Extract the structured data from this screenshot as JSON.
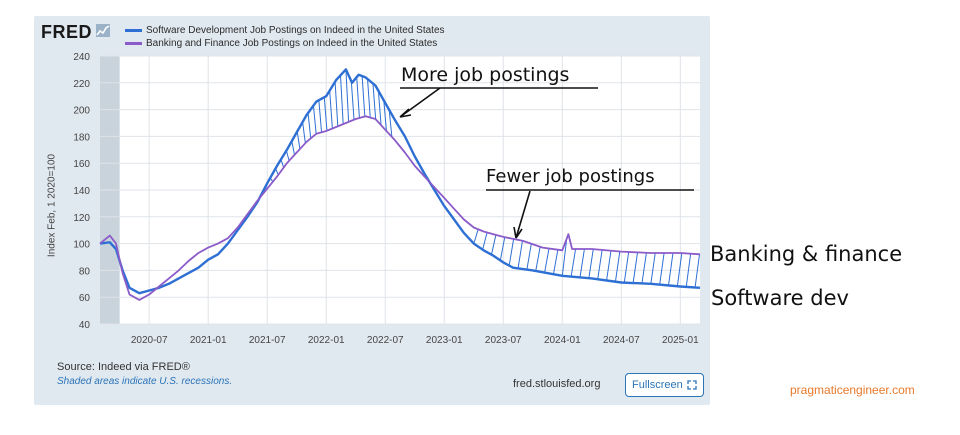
{
  "brand": "FRED",
  "legend": {
    "items": [
      {
        "label": "Software Development Job Postings on Indeed in the United States",
        "color": "#2e6fd4"
      },
      {
        "label": "Banking and Finance Job Postings on Indeed in the United States",
        "color": "#8a5bc9"
      }
    ]
  },
  "axis": {
    "ylabel": "Index Feb, 1 2020=100"
  },
  "footer": {
    "source": "Source: Indeed via FRED®",
    "recession_note": "Shaded areas indicate U.S. recessions.",
    "website": "fred.stlouisfed.org",
    "fullscreen_label": "Fullscreen"
  },
  "annotations": {
    "more": "More job postings",
    "fewer": "Fewer job postings",
    "banking": "Banking & finance",
    "software": "Software dev"
  },
  "credit": "pragmaticengineer.com",
  "colors": {
    "software": "#2e6fd4",
    "banking": "#8a5bc9",
    "panel": "#e1e9f0",
    "recession": "#c9d3dc",
    "credit": "#e8792a"
  },
  "chart_data": {
    "type": "line",
    "ylabel": "Index Feb, 1 2020=100",
    "ylim": [
      40,
      240
    ],
    "yticks": [
      40,
      60,
      80,
      100,
      120,
      140,
      160,
      180,
      200,
      220,
      240
    ],
    "xlim": [
      "2020-02",
      "2025-03"
    ],
    "xticks": [
      "2020-07",
      "2021-01",
      "2021-07",
      "2022-01",
      "2022-07",
      "2023-01",
      "2023-07",
      "2024-01",
      "2024-07",
      "2025-01"
    ],
    "grid": true,
    "legend_position": "top-left",
    "recession": {
      "start": "2020-02",
      "end": "2020-04"
    },
    "series": [
      {
        "name": "Software Development Job Postings on Indeed in the United States",
        "color": "#2e6fd4",
        "points": [
          [
            "2020-02-01",
            100
          ],
          [
            "2020-03-01",
            101
          ],
          [
            "2020-03-20",
            96
          ],
          [
            "2020-04-10",
            80
          ],
          [
            "2020-05-01",
            67
          ],
          [
            "2020-06-01",
            63
          ],
          [
            "2020-07-01",
            65
          ],
          [
            "2020-08-01",
            67
          ],
          [
            "2020-09-01",
            70
          ],
          [
            "2020-10-01",
            74
          ],
          [
            "2020-11-01",
            78
          ],
          [
            "2020-12-01",
            82
          ],
          [
            "2021-01-01",
            88
          ],
          [
            "2021-02-01",
            92
          ],
          [
            "2021-03-01",
            100
          ],
          [
            "2021-04-01",
            110
          ],
          [
            "2021-05-01",
            120
          ],
          [
            "2021-06-01",
            131
          ],
          [
            "2021-07-01",
            145
          ],
          [
            "2021-08-01",
            158
          ],
          [
            "2021-09-01",
            170
          ],
          [
            "2021-10-01",
            183
          ],
          [
            "2021-11-01",
            196
          ],
          [
            "2021-12-01",
            206
          ],
          [
            "2022-01-01",
            210
          ],
          [
            "2022-02-01",
            222
          ],
          [
            "2022-03-01",
            230
          ],
          [
            "2022-03-20",
            220
          ],
          [
            "2022-04-10",
            226
          ],
          [
            "2022-05-01",
            224
          ],
          [
            "2022-06-01",
            218
          ],
          [
            "2022-07-01",
            205
          ],
          [
            "2022-08-01",
            192
          ],
          [
            "2022-09-01",
            180
          ],
          [
            "2022-10-01",
            165
          ],
          [
            "2022-11-01",
            152
          ],
          [
            "2022-12-01",
            140
          ],
          [
            "2023-01-01",
            128
          ],
          [
            "2023-02-01",
            118
          ],
          [
            "2023-03-01",
            108
          ],
          [
            "2023-04-01",
            100
          ],
          [
            "2023-05-01",
            95
          ],
          [
            "2023-06-01",
            91
          ],
          [
            "2023-07-01",
            86
          ],
          [
            "2023-08-01",
            82
          ],
          [
            "2023-10-01",
            80
          ],
          [
            "2024-01-01",
            76
          ],
          [
            "2024-04-01",
            74
          ],
          [
            "2024-07-01",
            71
          ],
          [
            "2024-10-01",
            70
          ],
          [
            "2025-01-01",
            68
          ],
          [
            "2025-03-01",
            67
          ]
        ]
      },
      {
        "name": "Banking and Finance Job Postings on Indeed in the United States",
        "color": "#8a5bc9",
        "points": [
          [
            "2020-02-01",
            100
          ],
          [
            "2020-03-01",
            106
          ],
          [
            "2020-03-20",
            100
          ],
          [
            "2020-04-10",
            78
          ],
          [
            "2020-05-01",
            62
          ],
          [
            "2020-06-01",
            58
          ],
          [
            "2020-07-01",
            62
          ],
          [
            "2020-08-01",
            68
          ],
          [
            "2020-09-01",
            74
          ],
          [
            "2020-10-01",
            80
          ],
          [
            "2020-11-01",
            87
          ],
          [
            "2020-12-01",
            93
          ],
          [
            "2021-01-01",
            97
          ],
          [
            "2021-02-01",
            100
          ],
          [
            "2021-03-01",
            104
          ],
          [
            "2021-04-01",
            112
          ],
          [
            "2021-05-01",
            122
          ],
          [
            "2021-06-01",
            132
          ],
          [
            "2021-07-01",
            141
          ],
          [
            "2021-08-01",
            150
          ],
          [
            "2021-09-01",
            160
          ],
          [
            "2021-10-01",
            168
          ],
          [
            "2021-11-01",
            176
          ],
          [
            "2021-12-01",
            182
          ],
          [
            "2022-01-01",
            184
          ],
          [
            "2022-02-01",
            187
          ],
          [
            "2022-03-01",
            190
          ],
          [
            "2022-04-01",
            193
          ],
          [
            "2022-05-01",
            195
          ],
          [
            "2022-06-01",
            193
          ],
          [
            "2022-07-01",
            185
          ],
          [
            "2022-08-01",
            177
          ],
          [
            "2022-09-01",
            168
          ],
          [
            "2022-10-01",
            158
          ],
          [
            "2022-11-01",
            150
          ],
          [
            "2022-12-01",
            142
          ],
          [
            "2023-01-01",
            134
          ],
          [
            "2023-02-01",
            126
          ],
          [
            "2023-03-01",
            118
          ],
          [
            "2023-04-01",
            112
          ],
          [
            "2023-05-01",
            109
          ],
          [
            "2023-06-01",
            107
          ],
          [
            "2023-07-01",
            105
          ],
          [
            "2023-09-01",
            102
          ],
          [
            "2023-11-01",
            97
          ],
          [
            "2024-01-01",
            95
          ],
          [
            "2024-01-20",
            107
          ],
          [
            "2024-02-01",
            96
          ],
          [
            "2024-04-01",
            96
          ],
          [
            "2024-07-01",
            94
          ],
          [
            "2024-10-01",
            93
          ],
          [
            "2025-01-01",
            93
          ],
          [
            "2025-03-01",
            92
          ]
        ]
      }
    ]
  }
}
